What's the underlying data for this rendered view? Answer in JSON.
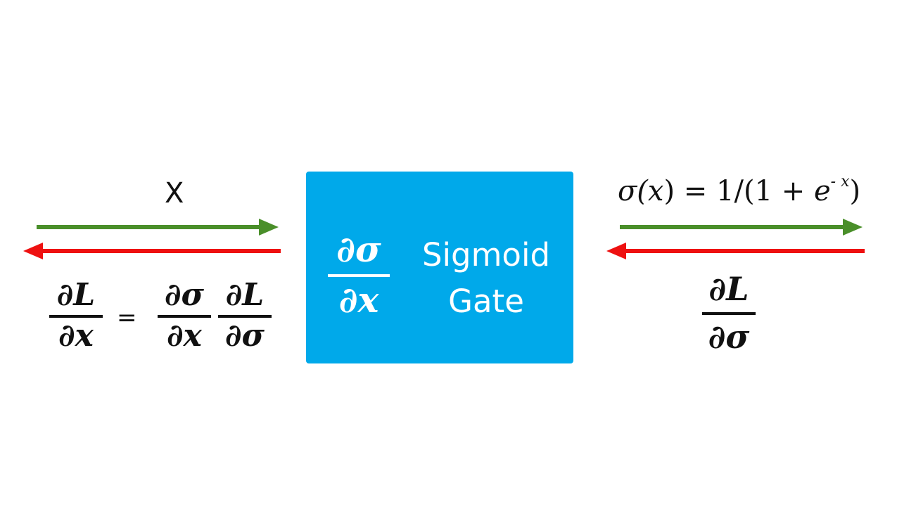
{
  "diagram": {
    "title_hidden": "",
    "input_label": "X",
    "gate": {
      "label_line1": "Sigmoid",
      "label_line2": "Gate",
      "local_grad": {
        "num": "∂σ",
        "den": "∂x"
      }
    },
    "output": {
      "formula": {
        "func": "σ(",
        "var": "x",
        "rest": ") = 1/(1 + ",
        "base": "e",
        "exponent": "- x",
        "close": ")"
      },
      "upstream_grad": {
        "num": "∂L",
        "den": "∂σ"
      }
    },
    "chain_rule": {
      "lhs": {
        "num": "∂L",
        "den": "∂x"
      },
      "equals": "=",
      "rhs1": {
        "num": "∂σ",
        "den": "∂x"
      },
      "rhs2": {
        "num": "∂L",
        "den": "∂σ"
      }
    },
    "colors": {
      "forward": "#4a8f2a",
      "backward": "#ee1111",
      "gate_fill": "#00a9ea",
      "text": "#111111"
    }
  }
}
